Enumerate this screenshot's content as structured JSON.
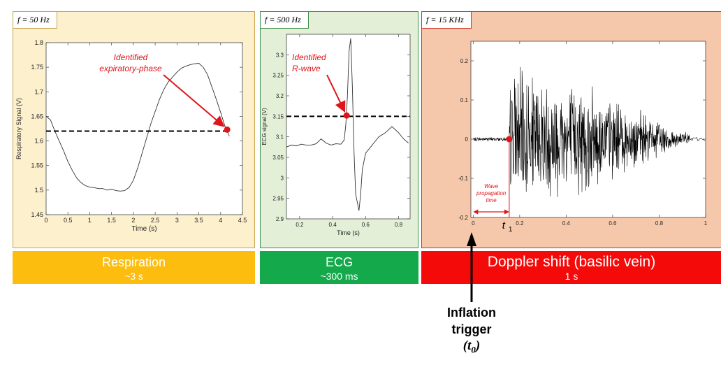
{
  "panels": {
    "respiration": {
      "freq_label": "f = 50 Hz",
      "band_title": "Respiration",
      "band_subtitle": "~3 s",
      "annotation": [
        "Identified",
        "expiratory-phase"
      ]
    },
    "ecg": {
      "freq_label": "f = 500 Hz",
      "band_title": "ECG",
      "band_subtitle": "~300 ms",
      "annotation": [
        "Identified",
        "R-wave"
      ]
    },
    "doppler": {
      "freq_label": "f = 15 KHz",
      "band_title": "Doppler shift (basilic vein)",
      "band_subtitle": "1 s",
      "wave_note": [
        "Wave",
        "propagation",
        "time"
      ],
      "t1_label": "t",
      "t1_sub": "1"
    }
  },
  "trigger": {
    "line1": "Inflation",
    "line2": "trigger",
    "t0": "(t",
    "t0_sub": "0",
    "t0_close": ")"
  },
  "colors": {
    "respiration_bg": "#fdf0cd",
    "respiration_band": "#fdbd0f",
    "ecg_bg": "#e4efd8",
    "ecg_band": "#14a94b",
    "doppler_bg": "#f6c8ab",
    "doppler_band": "#f50a0a",
    "annotation": "#e0141a"
  },
  "chart_data": [
    {
      "type": "line",
      "xlabel": "Time (s)",
      "ylabel": "Respiratory Signal (V)",
      "xlim": [
        0,
        4.5
      ],
      "ylim": [
        1.45,
        1.8
      ],
      "xticks": [
        "0",
        "0.5",
        "1",
        "1.5",
        "2",
        "2.5",
        "3",
        "3.5",
        "4",
        "4.5"
      ],
      "yticks": [
        "1.45",
        "1.5",
        "1.55",
        "1.6",
        "1.65",
        "1.7",
        "1.75",
        "1.8"
      ],
      "series": [
        {
          "x": [
            0,
            0.1,
            0.2,
            0.3,
            0.4,
            0.5,
            0.6,
            0.7,
            0.8,
            0.9,
            1.0,
            1.1,
            1.2,
            1.3,
            1.4,
            1.5,
            1.6,
            1.7,
            1.8,
            1.9,
            2.0,
            2.1,
            2.2,
            2.3,
            2.4,
            2.5,
            2.6,
            2.7,
            2.8,
            2.9,
            3.0,
            3.1,
            3.2,
            3.3,
            3.4,
            3.5,
            3.6,
            3.7,
            3.8,
            3.9,
            4.0,
            4.1,
            4.2
          ],
          "y": [
            1.65,
            1.643,
            1.62,
            1.6,
            1.58,
            1.558,
            1.54,
            1.525,
            1.515,
            1.509,
            1.506,
            1.505,
            1.503,
            1.503,
            1.5,
            1.502,
            1.499,
            1.498,
            1.499,
            1.505,
            1.52,
            1.545,
            1.575,
            1.605,
            1.635,
            1.66,
            1.685,
            1.705,
            1.72,
            1.73,
            1.74,
            1.748,
            1.752,
            1.755,
            1.757,
            1.758,
            1.75,
            1.735,
            1.71,
            1.685,
            1.658,
            1.63,
            1.61
          ]
        }
      ],
      "threshold_y": 1.62,
      "marker": {
        "x": 4.15,
        "y": 1.623
      }
    },
    {
      "type": "line",
      "xlabel": "Time (s)",
      "ylabel": "ECG signal (V)",
      "xlim": [
        0.12,
        0.87
      ],
      "ylim": [
        2.9,
        3.35
      ],
      "xticks": [
        "0.2",
        "0.4",
        "0.6",
        "0.8"
      ],
      "yticks": [
        "2.9",
        "2.95",
        "3",
        "3.05",
        "3.1",
        "3.15",
        "3.2",
        "3.25",
        "3.3"
      ],
      "series": [
        {
          "x": [
            0.12,
            0.15,
            0.18,
            0.21,
            0.24,
            0.27,
            0.3,
            0.33,
            0.36,
            0.39,
            0.42,
            0.45,
            0.47,
            0.48,
            0.49,
            0.5,
            0.51,
            0.52,
            0.53,
            0.54,
            0.55,
            0.56,
            0.57,
            0.58,
            0.6,
            0.62,
            0.65,
            0.68,
            0.72,
            0.76,
            0.8,
            0.83,
            0.86
          ],
          "y": [
            3.075,
            3.08,
            3.078,
            3.082,
            3.08,
            3.08,
            3.083,
            3.095,
            3.085,
            3.08,
            3.083,
            3.082,
            3.092,
            3.13,
            3.2,
            3.31,
            3.34,
            3.22,
            3.06,
            2.96,
            2.94,
            2.92,
            2.96,
            3.02,
            3.06,
            3.07,
            3.085,
            3.1,
            3.11,
            3.125,
            3.11,
            3.095,
            3.085
          ]
        }
      ],
      "threshold_y": 3.15,
      "marker": {
        "x": 0.485,
        "y": 3.152
      }
    },
    {
      "type": "line",
      "xlim": [
        -0.01,
        1.0
      ],
      "ylim": [
        -0.2,
        0.25
      ],
      "xticks": [
        "0",
        "0.2",
        "0.4",
        "0.6",
        "0.8",
        "1"
      ],
      "yticks": [
        "-0.2",
        "-0.1",
        "0",
        "0.1",
        "0.2"
      ],
      "signal": "noisy oscillation; near 0 before t1 (~0.155 s), high-amplitude burst up to ~0.23 decaying to ~0.87 s",
      "onset_x": 0.155,
      "marker": {
        "x": 0.155,
        "y": 0.0
      }
    }
  ]
}
